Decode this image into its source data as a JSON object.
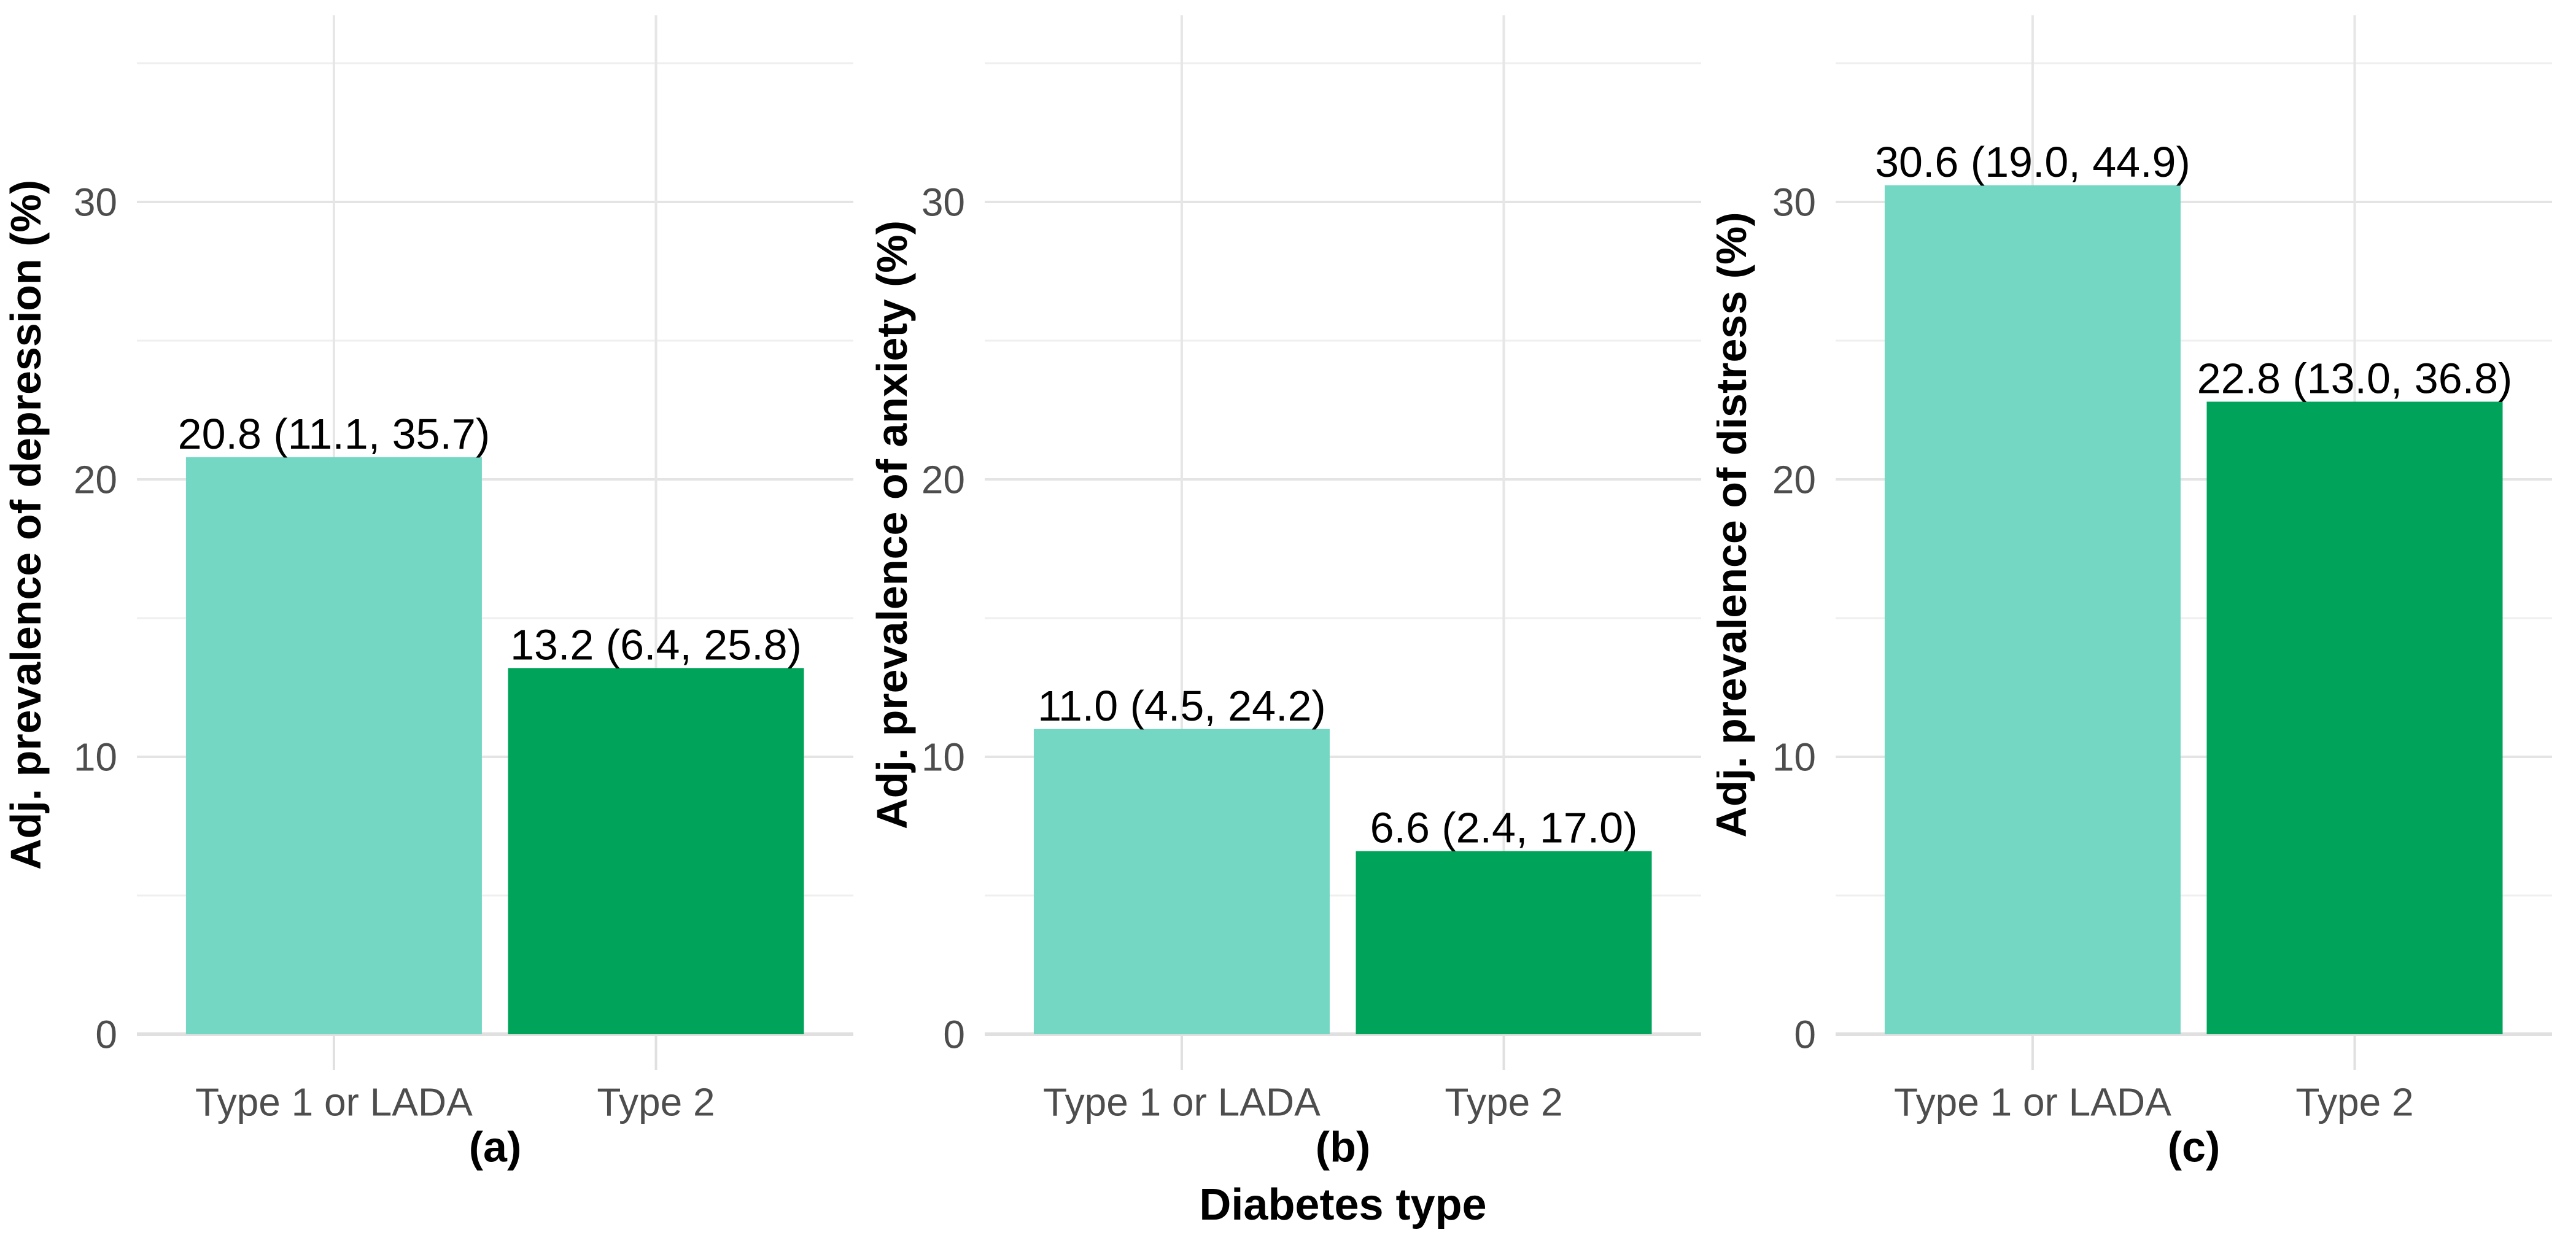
{
  "figure": {
    "background": "#FFFFFF",
    "shared_x_axis_title": "Diabetes type",
    "categories": [
      "Type 1 or LADA",
      "Type 2"
    ],
    "panel_labels": [
      "(a)",
      "(b)",
      "(c)"
    ]
  },
  "styles": {
    "bar_teal": "#73D7C4",
    "bar_green": "#00A35A",
    "grid_major": "#E4E4E4",
    "grid_minor": "#EFEFEF",
    "grid_vertical": "#E6E6E6",
    "axis_line": "#E0E0E0",
    "tick_mark": "#E0E0E0",
    "tick_label_color": "#4D4D4D",
    "text_color": "#000000",
    "background": "#FFFFFF"
  },
  "chart_data": [
    {
      "type": "bar",
      "panel_label": "(a)",
      "ylabel": "Adj. prevalence of depression (%)",
      "xlabel": "",
      "categories": [
        "Type 1 or LADA",
        "Type 2"
      ],
      "values": [
        20.8,
        13.2
      ],
      "bar_labels": [
        "20.8 (11.1, 35.7)",
        "13.2 (6.4, 25.8)"
      ],
      "bar_colors": [
        "#73D7C4",
        "#00A35A"
      ],
      "yticks": [
        0,
        10,
        20,
        30
      ],
      "y_minor_gridlines": [
        5,
        15,
        25,
        35
      ],
      "ylim": [
        0,
        36.7
      ],
      "grid": true,
      "legend": "none"
    },
    {
      "type": "bar",
      "panel_label": "(b)",
      "ylabel": "Adj. prevalence of anxiety (%)",
      "xlabel": "Diabetes type",
      "categories": [
        "Type 1 or LADA",
        "Type 2"
      ],
      "values": [
        11.0,
        6.6
      ],
      "bar_labels": [
        "11.0 (4.5, 24.2)",
        "6.6 (2.4, 17.0)"
      ],
      "bar_colors": [
        "#73D7C4",
        "#00A35A"
      ],
      "yticks": [
        0,
        10,
        20,
        30
      ],
      "y_minor_gridlines": [
        5,
        15,
        25,
        35
      ],
      "ylim": [
        0,
        36.7
      ],
      "grid": true,
      "legend": "none"
    },
    {
      "type": "bar",
      "panel_label": "(c)",
      "ylabel": "Adj. prevalence of distress (%)",
      "xlabel": "",
      "categories": [
        "Type 1 or LADA",
        "Type 2"
      ],
      "values": [
        30.6,
        22.8
      ],
      "bar_labels": [
        "30.6 (19.0, 44.9)",
        "22.8 (13.0, 36.8)"
      ],
      "bar_colors": [
        "#73D7C4",
        "#00A35A"
      ],
      "yticks": [
        0,
        10,
        20,
        30
      ],
      "y_minor_gridlines": [
        5,
        15,
        25,
        35
      ],
      "ylim": [
        0,
        36.7
      ],
      "grid": true,
      "legend": "none"
    }
  ]
}
